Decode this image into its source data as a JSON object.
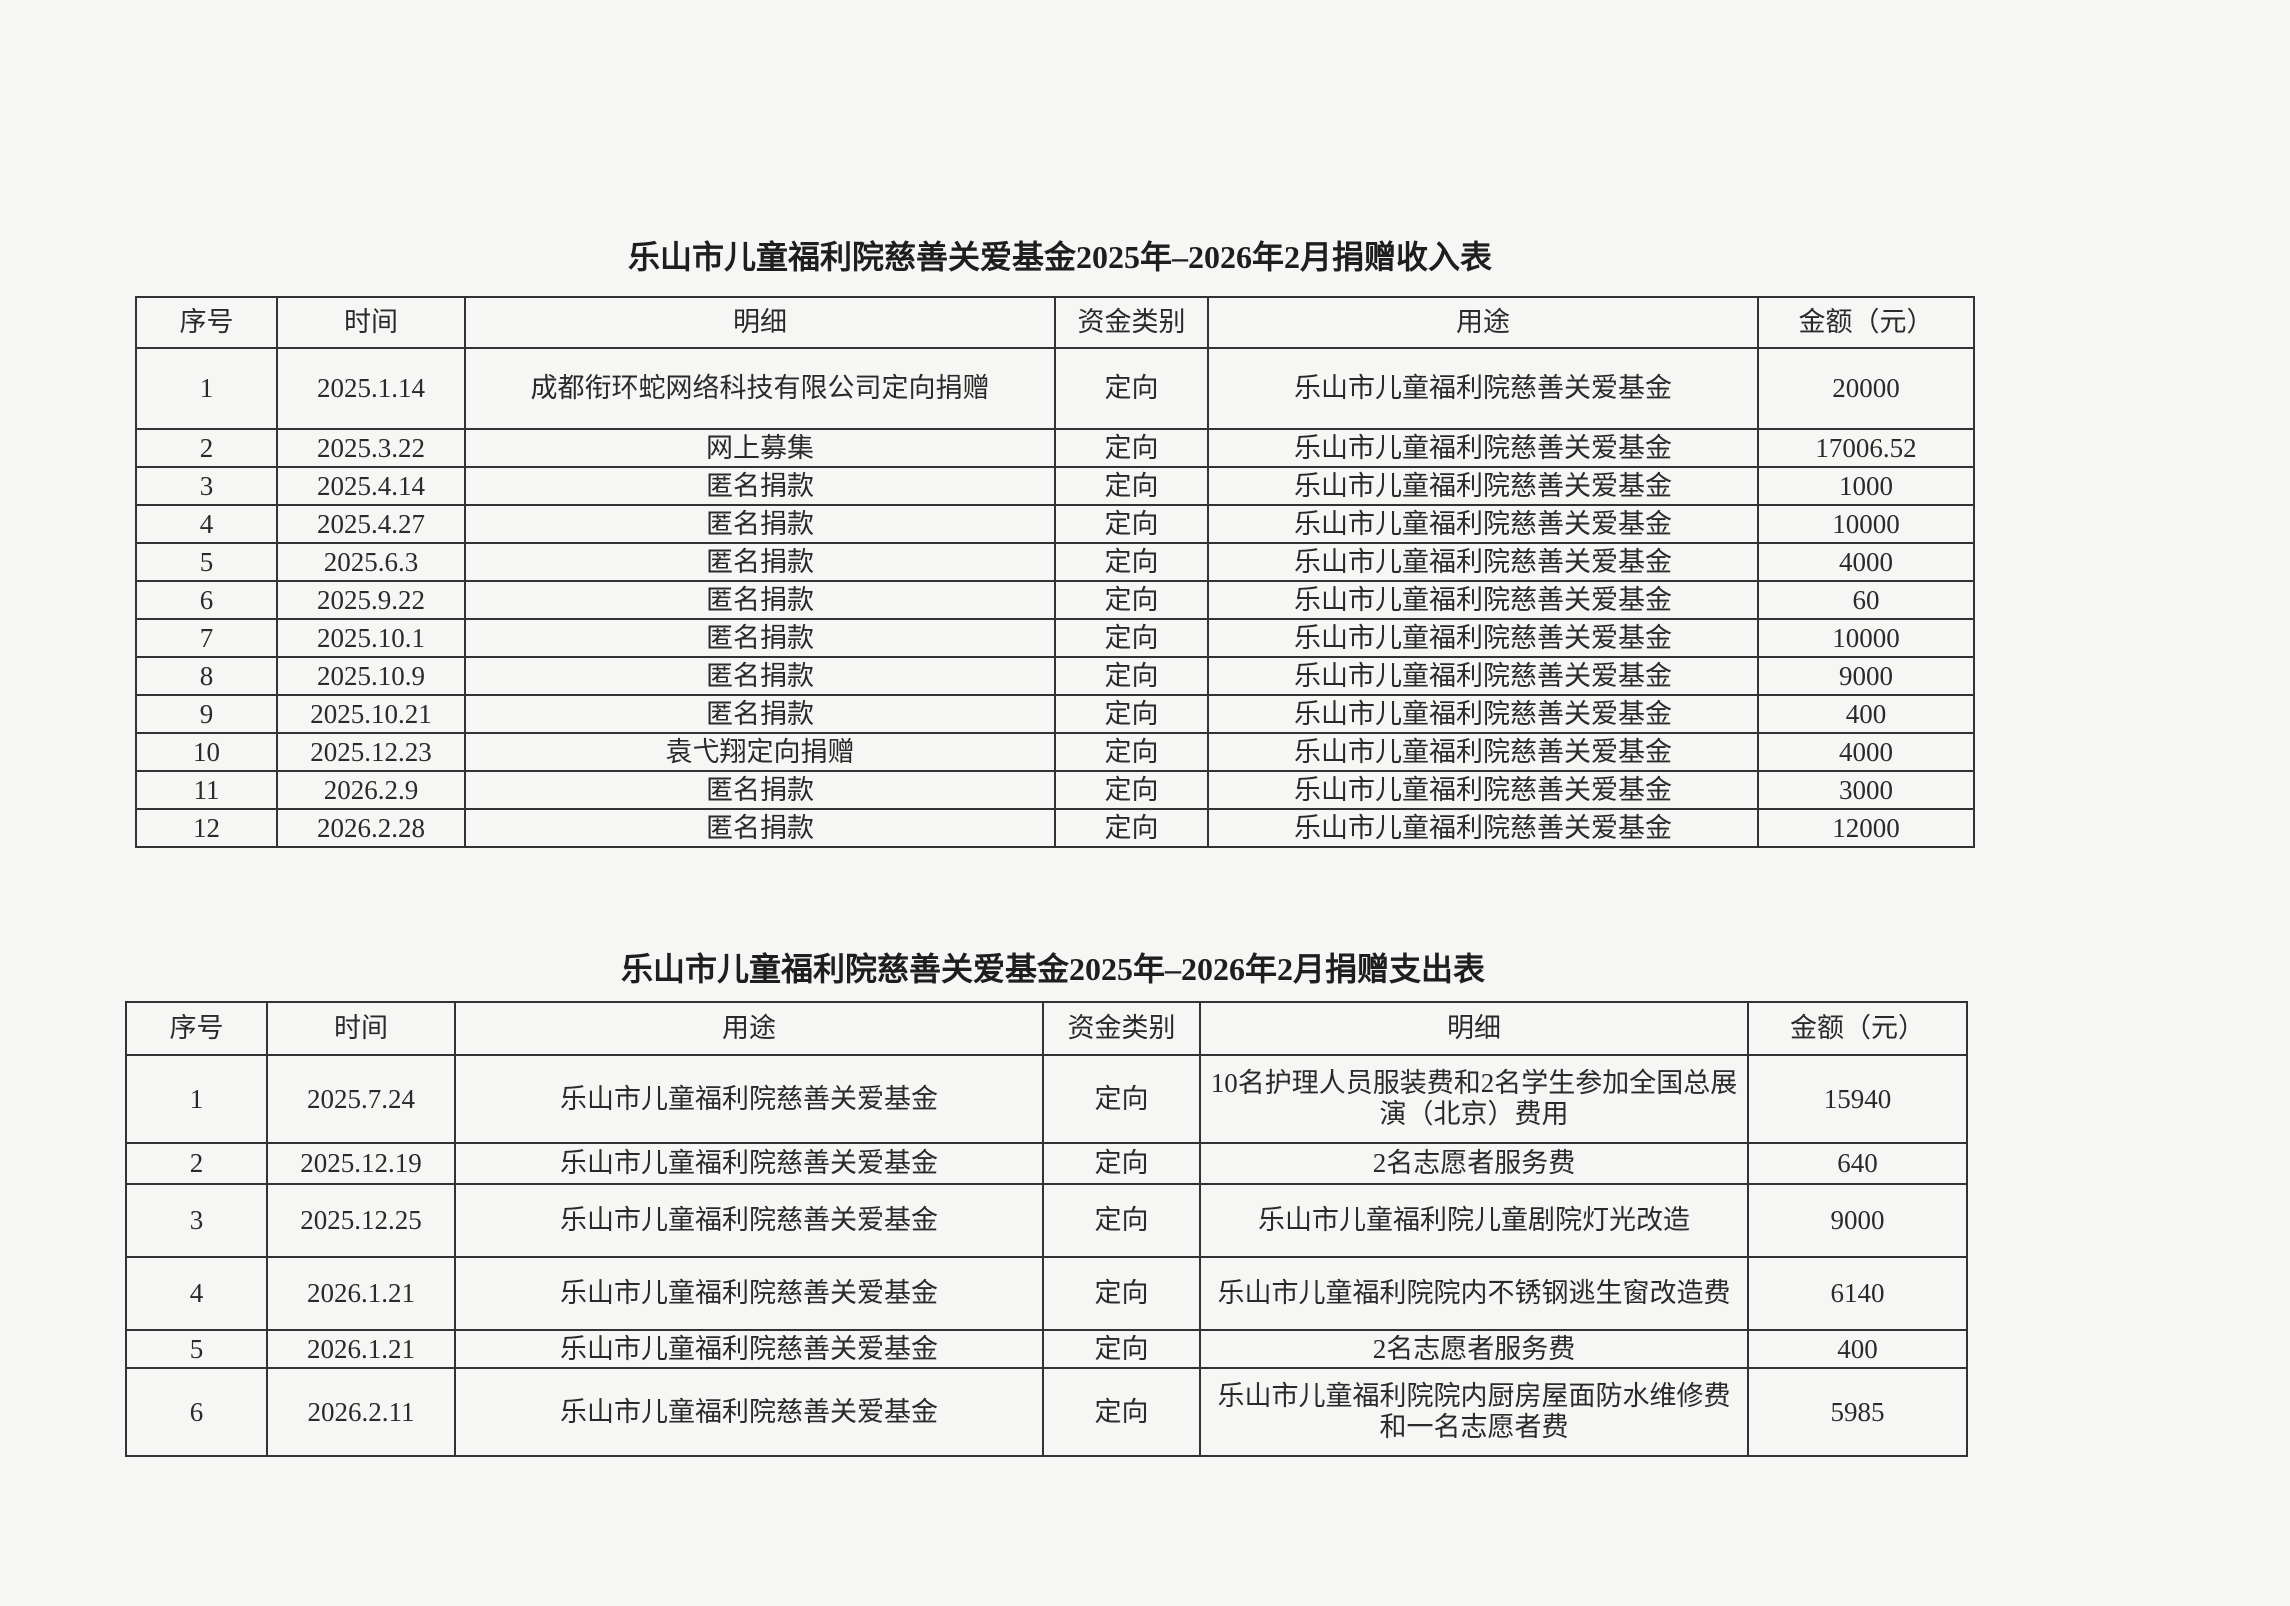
{
  "income": {
    "title": "乐山市儿童福利院慈善关爱基金2025年–2026年2月捐赠收入表",
    "headers": [
      "序号",
      "时间",
      "明细",
      "资金类别",
      "用途",
      "金额（元）"
    ],
    "rows": [
      [
        "1",
        "2025.1.14",
        "成都衔环蛇网络科技有限公司定向捐赠",
        "定向",
        "乐山市儿童福利院慈善关爱基金",
        "20000"
      ],
      [
        "2",
        "2025.3.22",
        "网上募集",
        "定向",
        "乐山市儿童福利院慈善关爱基金",
        "17006.52"
      ],
      [
        "3",
        "2025.4.14",
        "匿名捐款",
        "定向",
        "乐山市儿童福利院慈善关爱基金",
        "1000"
      ],
      [
        "4",
        "2025.4.27",
        "匿名捐款",
        "定向",
        "乐山市儿童福利院慈善关爱基金",
        "10000"
      ],
      [
        "5",
        "2025.6.3",
        "匿名捐款",
        "定向",
        "乐山市儿童福利院慈善关爱基金",
        "4000"
      ],
      [
        "6",
        "2025.9.22",
        "匿名捐款",
        "定向",
        "乐山市儿童福利院慈善关爱基金",
        "60"
      ],
      [
        "7",
        "2025.10.1",
        "匿名捐款",
        "定向",
        "乐山市儿童福利院慈善关爱基金",
        "10000"
      ],
      [
        "8",
        "2025.10.9",
        "匿名捐款",
        "定向",
        "乐山市儿童福利院慈善关爱基金",
        "9000"
      ],
      [
        "9",
        "2025.10.21",
        "匿名捐款",
        "定向",
        "乐山市儿童福利院慈善关爱基金",
        "400"
      ],
      [
        "10",
        "2025.12.23",
        "袁弋翔定向捐赠",
        "定向",
        "乐山市儿童福利院慈善关爱基金",
        "4000"
      ],
      [
        "11",
        "2026.2.9",
        "匿名捐款",
        "定向",
        "乐山市儿童福利院慈善关爱基金",
        "3000"
      ],
      [
        "12",
        "2026.2.28",
        "匿名捐款",
        "定向",
        "乐山市儿童福利院慈善关爱基金",
        "12000"
      ]
    ]
  },
  "expense": {
    "title": "乐山市儿童福利院慈善关爱基金2025年–2026年2月捐赠支出表",
    "headers": [
      "序号",
      "时间",
      "用途",
      "资金类别",
      "明细",
      "金额（元）"
    ],
    "rows": [
      [
        "1",
        "2025.7.24",
        "乐山市儿童福利院慈善关爱基金",
        "定向",
        "10名护理人员服装费和2名学生参加全国总展演（北京）费用",
        "15940"
      ],
      [
        "2",
        "2025.12.19",
        "乐山市儿童福利院慈善关爱基金",
        "定向",
        "2名志愿者服务费",
        "640"
      ],
      [
        "3",
        "2025.12.25",
        "乐山市儿童福利院慈善关爱基金",
        "定向",
        "乐山市儿童福利院儿童剧院灯光改造",
        "9000"
      ],
      [
        "4",
        "2026.1.21",
        "乐山市儿童福利院慈善关爱基金",
        "定向",
        "乐山市儿童福利院院内不锈钢逃生窗改造费",
        "6140"
      ],
      [
        "5",
        "2026.1.21",
        "乐山市儿童福利院慈善关爱基金",
        "定向",
        "2名志愿者服务费",
        "400"
      ],
      [
        "6",
        "2026.2.11",
        "乐山市儿童福利院慈善关爱基金",
        "定向",
        "乐山市儿童福利院院内厨房屋面防水维修费和一名志愿者费",
        "5985"
      ]
    ]
  }
}
